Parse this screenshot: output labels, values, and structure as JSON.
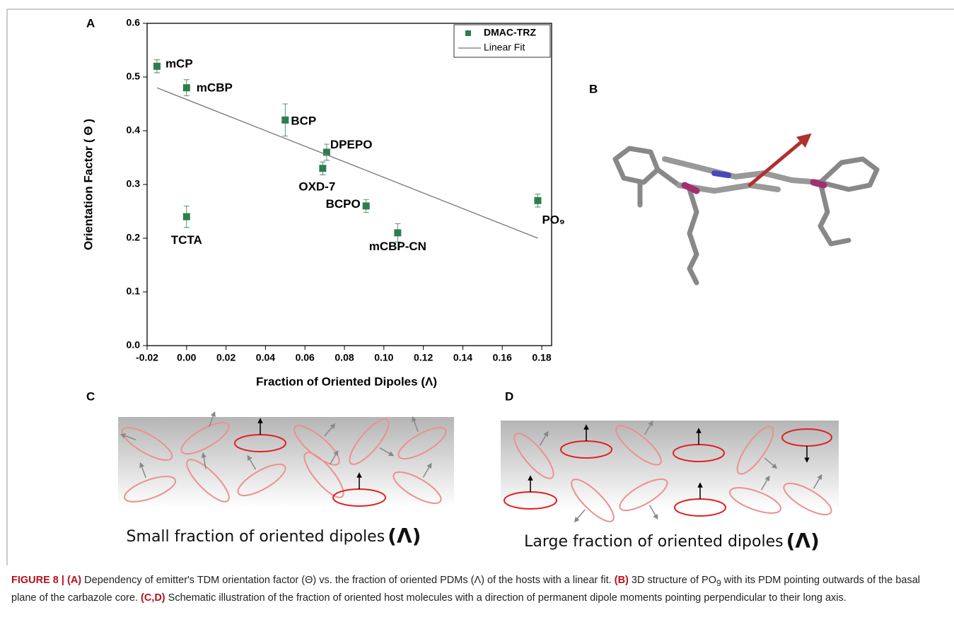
{
  "chart_data": {
    "type": "scatter",
    "xlabel": "Fraction of Oriented Dipoles (Λ)",
    "ylabel": "Orientation Factor ( Θ )",
    "xlim": [
      -0.02,
      0.185
    ],
    "ylim": [
      0,
      0.6
    ],
    "xticks": [
      -0.02,
      {
        "value": 0,
        "label": "0.00"
      },
      0.02,
      0.04,
      0.06,
      0.08,
      {
        "value": 0.1,
        "label": "0.10"
      },
      0.12,
      0.14,
      0.16,
      0.18
    ],
    "yticks": [
      {
        "value": 0,
        "label": "0.0"
      },
      0.1,
      0.2,
      0.3,
      0.4,
      0.5,
      0.6
    ],
    "legend": "upper right",
    "series": [
      {
        "name": "DMAC-TRZ",
        "color": "#2e7d4f",
        "x": [
          -0.015,
          0.0,
          0.05,
          0.071,
          0.069,
          0.0,
          0.091,
          0.107,
          0.178
        ],
        "values": [
          0.52,
          0.48,
          0.42,
          0.36,
          0.33,
          0.24,
          0.26,
          0.21,
          0.27
        ],
        "errors": [
          0.012,
          0.015,
          0.03,
          0.015,
          0.012,
          0.02,
          0.012,
          0.017,
          0.012
        ],
        "point_labels": [
          "mCP",
          "mCBP",
          "BCP",
          "DPEPO",
          "OXD-7",
          "TCTA",
          "BCPO",
          "mCBP-CN",
          "PO₉"
        ]
      },
      {
        "name": "Linear Fit",
        "color": "#777777",
        "x": [
          -0.015,
          0.178
        ],
        "values": [
          0.48,
          0.2
        ]
      }
    ]
  },
  "panels": {
    "a": "A",
    "b": "B",
    "c": "C",
    "d": "D"
  },
  "schematic": {
    "c_text": "Small fraction of oriented dipoles",
    "d_text": "Large fraction of oriented dipoles",
    "symbol": "(Λ)"
  },
  "caption": [
    "FIGURE 8 | (A)",
    " Dependency of emitter's TDM orientation factor (Θ) vs. the fraction of oriented PDMs (Λ) of the hosts with a linear fit. ",
    "(B)",
    " 3D structure of PO",
    "9",
    " with its PDM pointing outwards of the basal plane of the carbazole core. ",
    "(C,D)",
    " Schematic illustration of the fraction of oriented host molecules with a direction of permanent dipole moments pointing perpendicular to their long axis."
  ]
}
